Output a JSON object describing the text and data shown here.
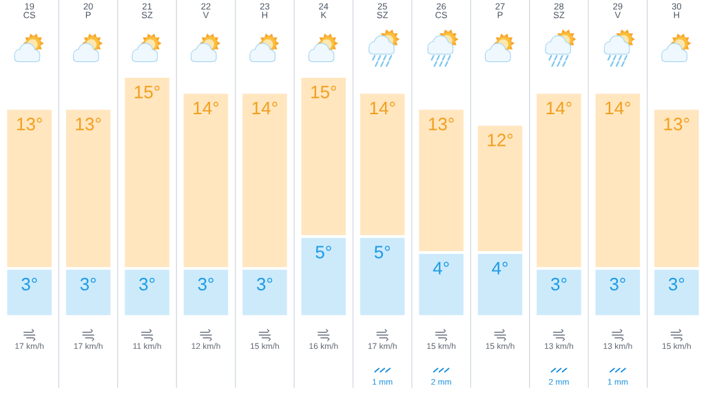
{
  "chart_data": [
    {
      "type": "bar",
      "stacked": true,
      "categories": [
        "19\nCS",
        "20\nP",
        "21\nSZ",
        "22\nV",
        "23\nH",
        "24\nK",
        "25\nSZ",
        "26\nCS",
        "27\nP",
        "28\nSZ",
        "29\nV",
        "30\nH"
      ],
      "series": [
        {
          "color": "#cdeafb",
          "values": [
            3,
            3,
            3,
            3,
            3,
            5,
            5,
            4,
            4,
            3,
            3,
            3
          ],
          "value_labels": [
            "3°",
            "3°",
            "3°",
            "3°",
            "3°",
            "5°",
            "5°",
            "4°",
            "4°",
            "3°",
            "3°",
            "3°"
          ]
        },
        {
          "color": "#ffe6bf",
          "values": [
            10,
            10,
            12,
            11,
            11,
            10,
            9,
            9,
            8,
            11,
            11,
            10
          ]
        }
      ],
      "totals": [
        "13°",
        "13°",
        "15°",
        "14°",
        "14°",
        "15°",
        "14°",
        "13°",
        "12°",
        "14°",
        "14°",
        "13°"
      ],
      "grid": "x",
      "tick_labels": "x"
    },
    {
      "type": "other",
      "categories": [
        null,
        null,
        null,
        null,
        null,
        null,
        null,
        null,
        null,
        null,
        null,
        null
      ],
      "color": "#5f6670",
      "value_labels": [
        "17 km/h",
        "17 km/h",
        "11 km/h",
        "12 km/h",
        "15 km/h",
        "16 km/h",
        "17 km/h",
        "15 km/h",
        "15 km/h",
        "13 km/h",
        "13 km/h",
        "15 km/h"
      ]
    },
    {
      "type": "other",
      "categories": [
        null,
        null,
        null,
        null,
        null,
        null,
        null,
        null,
        null,
        null,
        null,
        null
      ],
      "color": "#1a8fdc",
      "value_labels": [
        null,
        null,
        null,
        null,
        null,
        null,
        "1 mm",
        "2 mm",
        null,
        "2 mm",
        "1 mm",
        null
      ]
    }
  ]
}
